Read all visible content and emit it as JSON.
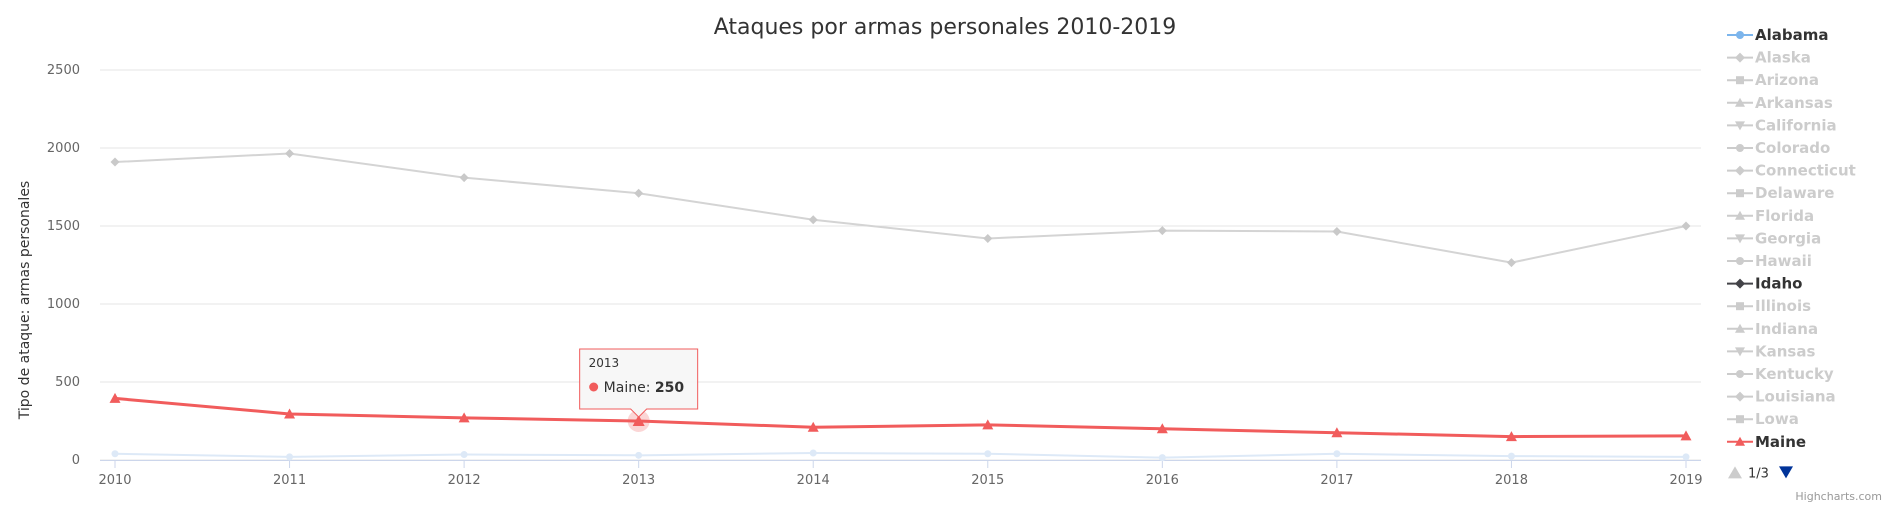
{
  "chart_data": {
    "type": "line",
    "title": "Ataques por armas personales 2010-2019",
    "xlabel": "",
    "ylabel": "Tipo de ataque: armas personales",
    "ylim": [
      0,
      2500
    ],
    "yticks": [
      "0",
      "500",
      "1000",
      "1500",
      "2000",
      "2500"
    ],
    "categories": [
      "2010",
      "2011",
      "2012",
      "2013",
      "2014",
      "2015",
      "2016",
      "2017",
      "2018",
      "2019"
    ],
    "grid": true,
    "legend_placement": "right",
    "series": [
      {
        "name": "Alabama",
        "color": "#7cb5ec",
        "marker": "circle",
        "visible": true,
        "faded": true,
        "values": [
          40,
          20,
          35,
          30,
          45,
          40,
          15,
          40,
          25,
          20
        ]
      },
      {
        "name": "Idaho",
        "color": "#434348",
        "marker": "diamond",
        "visible": true,
        "faded": true,
        "values": [
          1910,
          1965,
          1810,
          1710,
          1540,
          1420,
          1470,
          1465,
          1265,
          1500
        ]
      },
      {
        "name": "Maine",
        "color": "#f15c5c",
        "marker": "triangle",
        "visible": true,
        "faded": false,
        "values": [
          395,
          295,
          270,
          250,
          210,
          225,
          200,
          175,
          150,
          155
        ]
      }
    ],
    "legend": {
      "items": [
        {
          "name": "Alabama",
          "symbol": "circle",
          "color": "#7cb5ec",
          "visible": true
        },
        {
          "name": "Alaska",
          "symbol": "diamond",
          "color": "#cccccc",
          "visible": false
        },
        {
          "name": "Arizona",
          "symbol": "square",
          "color": "#cccccc",
          "visible": false
        },
        {
          "name": "Arkansas",
          "symbol": "triangle",
          "color": "#cccccc",
          "visible": false
        },
        {
          "name": "California",
          "symbol": "triangle-down",
          "color": "#cccccc",
          "visible": false
        },
        {
          "name": "Colorado",
          "symbol": "circle",
          "color": "#cccccc",
          "visible": false
        },
        {
          "name": "Connecticut",
          "symbol": "diamond",
          "color": "#cccccc",
          "visible": false
        },
        {
          "name": "Delaware",
          "symbol": "square",
          "color": "#cccccc",
          "visible": false
        },
        {
          "name": "Florida",
          "symbol": "triangle",
          "color": "#cccccc",
          "visible": false
        },
        {
          "name": "Georgia",
          "symbol": "triangle-down",
          "color": "#cccccc",
          "visible": false
        },
        {
          "name": "Hawaii",
          "symbol": "circle",
          "color": "#cccccc",
          "visible": false
        },
        {
          "name": "Idaho",
          "symbol": "diamond",
          "color": "#434348",
          "visible": true
        },
        {
          "name": "Illinois",
          "symbol": "square",
          "color": "#cccccc",
          "visible": false
        },
        {
          "name": "Indiana",
          "symbol": "triangle",
          "color": "#cccccc",
          "visible": false
        },
        {
          "name": "Kansas",
          "symbol": "triangle-down",
          "color": "#cccccc",
          "visible": false
        },
        {
          "name": "Kentucky",
          "symbol": "circle",
          "color": "#cccccc",
          "visible": false
        },
        {
          "name": "Louisiana",
          "symbol": "diamond",
          "color": "#cccccc",
          "visible": false
        },
        {
          "name": "Lowa",
          "symbol": "square",
          "color": "#cccccc",
          "visible": false
        },
        {
          "name": "Maine",
          "symbol": "triangle",
          "color": "#f15c5c",
          "visible": true
        }
      ],
      "page_label": "1/3"
    },
    "tooltip": {
      "header": "2013",
      "series": "Maine",
      "value": "250",
      "category_index": 3
    },
    "credits": "Highcharts.com"
  }
}
